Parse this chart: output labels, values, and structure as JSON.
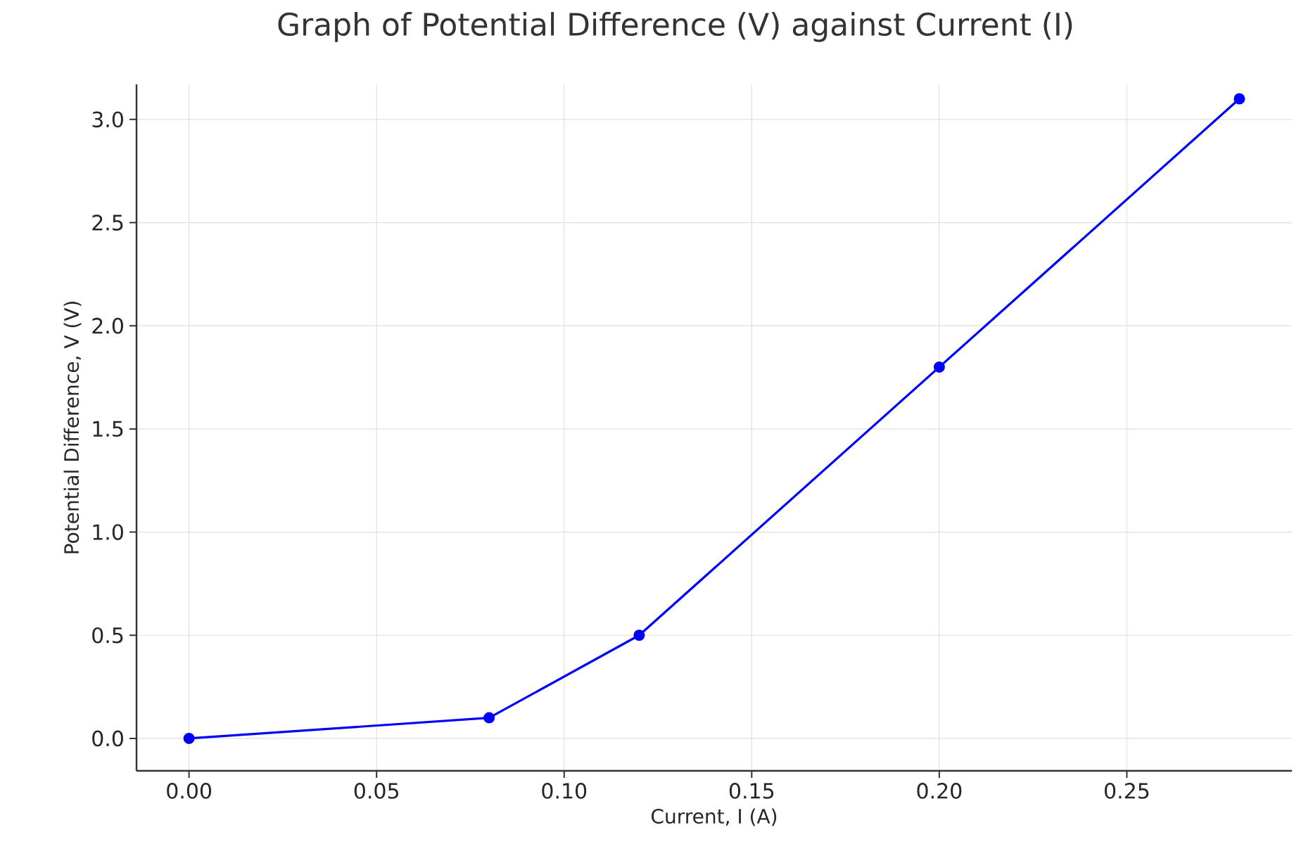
{
  "chart_data": {
    "type": "line",
    "title": "Graph of Potential Difference (V) against Current (I)",
    "xlabel": "Current, I (A)",
    "ylabel": "Potential Difference, V (V)",
    "x": [
      0,
      0.08,
      0.12,
      0.2,
      0.28
    ],
    "series": [
      {
        "color": "#0000ff",
        "values": [
          0,
          0.1,
          0.5,
          1.8,
          3.1
        ]
      }
    ],
    "xlim": [
      -0.014,
      0.294
    ],
    "ylim": [
      -0.157,
      3.17
    ],
    "xticks": [
      {
        "value": 0,
        "label": "0.00"
      },
      0.05,
      {
        "value": 0.1,
        "label": "0.10"
      },
      0.15,
      {
        "value": 0.2,
        "label": "0.20"
      },
      0.25
    ],
    "yticks": [
      {
        "value": 0,
        "label": "0.0"
      },
      0.5,
      {
        "value": 1,
        "label": "1.0"
      },
      1.5,
      {
        "value": 2,
        "label": "2.0"
      },
      2.5,
      {
        "value": 3,
        "label": "3.0"
      }
    ],
    "grid": true,
    "marker": "circle",
    "line_style": "solid"
  }
}
